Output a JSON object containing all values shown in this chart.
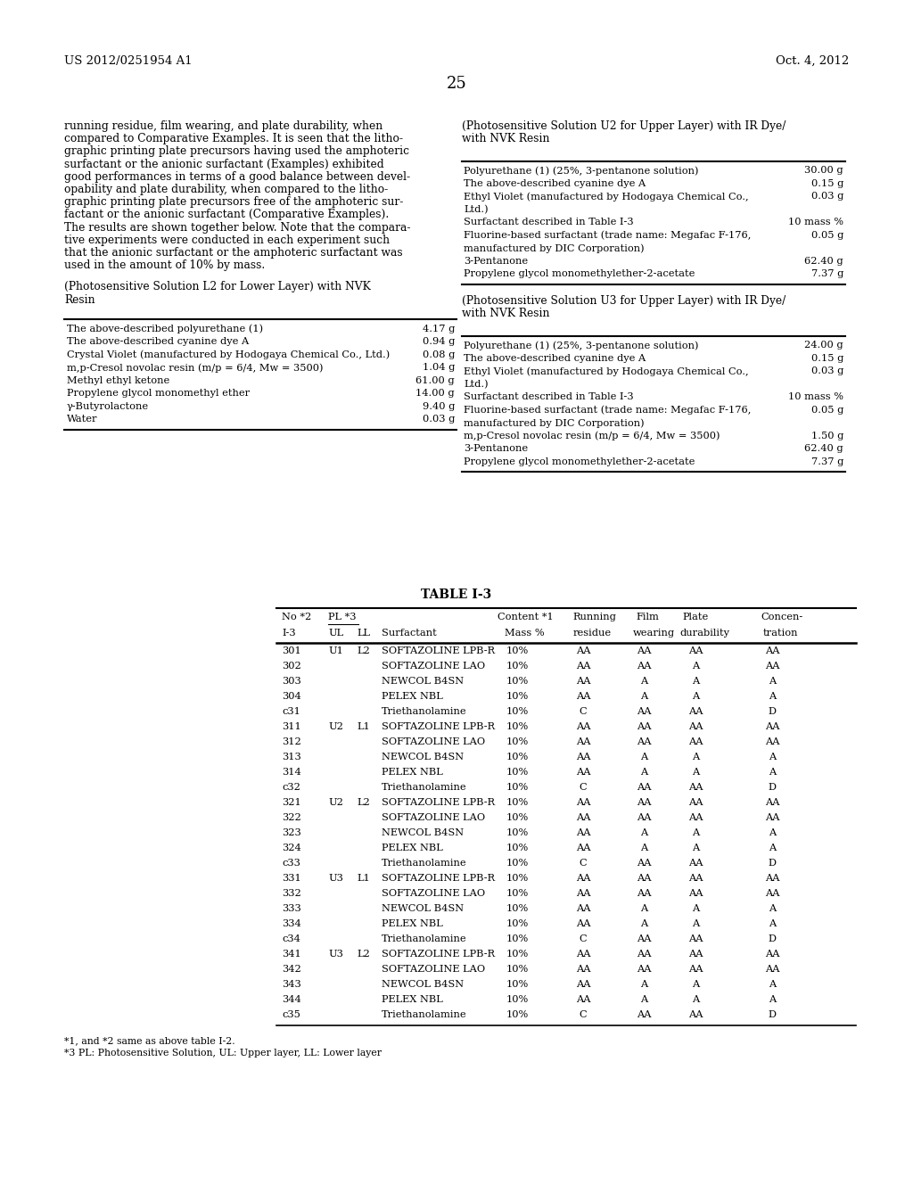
{
  "header_left": "US 2012/0251954 A1",
  "header_right": "Oct. 4, 2012",
  "page_number": "25",
  "left_body_text": [
    "running residue, film wearing, and plate durability, when",
    "compared to Comparative Examples. It is seen that the litho-",
    "graphic printing plate precursors having used the amphoteric",
    "surfactant or the anionic surfactant (Examples) exhibited",
    "good performances in terms of a good balance between devel-",
    "opability and plate durability, when compared to the litho-",
    "graphic printing plate precursors free of the amphoteric sur-",
    "factant or the anionic surfactant (Comparative Examples).",
    "The results are shown together below. Note that the compara-",
    "tive experiments were conducted in each experiment such",
    "that the anionic surfactant or the amphoteric surfactant was",
    "used in the amount of 10% by mass."
  ],
  "left_section_title_line1": "(Photosensitive Solution L2 for Lower Layer) with NVK",
  "left_section_title_line2": "Resin",
  "left_table_rows": [
    [
      "The above-described polyurethane (1)",
      "4.17 g"
    ],
    [
      "The above-described cyanine dye A",
      "0.94 g"
    ],
    [
      "Crystal Violet (manufactured by Hodogaya Chemical Co., Ltd.)",
      "0.08 g"
    ],
    [
      "m,p-Cresol novolac resin (m/p = 6/4, Mw = 3500)",
      "1.04 g"
    ],
    [
      "Methyl ethyl ketone",
      "61.00 g"
    ],
    [
      "Propylene glycol monomethyl ether",
      "14.00 g"
    ],
    [
      "γ-Butyrolactone",
      "9.40 g"
    ],
    [
      "Water",
      "0.03 g"
    ]
  ],
  "right_u2_title_line1": "(Photosensitive Solution U2 for Upper Layer) with IR Dye/",
  "right_u2_title_line2": "with NVK Resin",
  "right_u2_rows": [
    [
      "Polyurethane (1) (25%, 3-pentanone solution)",
      "30.00 g"
    ],
    [
      "The above-described cyanine dye A",
      "0.15 g"
    ],
    [
      "Ethyl Violet (manufactured by Hodogaya Chemical Co.,",
      "0.03 g"
    ],
    [
      "Ltd.)",
      ""
    ],
    [
      "Surfactant described in Table I-3",
      "10 mass %"
    ],
    [
      "Fluorine-based surfactant (trade name: Megafac F-176,",
      "0.05 g"
    ],
    [
      "manufactured by DIC Corporation)",
      ""
    ],
    [
      "3-Pentanone",
      "62.40 g"
    ],
    [
      "Propylene glycol monomethylether-2-acetate",
      "7.37 g"
    ]
  ],
  "right_u3_title_line1": "(Photosensitive Solution U3 for Upper Layer) with IR Dye/",
  "right_u3_title_line2": "with NVK Resin",
  "right_u3_rows": [
    [
      "Polyurethane (1) (25%, 3-pentanone solution)",
      "24.00 g"
    ],
    [
      "The above-described cyanine dye A",
      "0.15 g"
    ],
    [
      "Ethyl Violet (manufactured by Hodogaya Chemical Co.,",
      "0.03 g"
    ],
    [
      "Ltd.)",
      ""
    ],
    [
      "Surfactant described in Table I-3",
      "10 mass %"
    ],
    [
      "Fluorine-based surfactant (trade name: Megafac F-176,",
      "0.05 g"
    ],
    [
      "manufactured by DIC Corporation)",
      ""
    ],
    [
      "m,p-Cresol novolac resin (m/p = 6/4, Mw = 3500)",
      "1.50 g"
    ],
    [
      "3-Pentanone",
      "62.40 g"
    ],
    [
      "Propylene glycol monomethylether-2-acetate",
      "7.37 g"
    ]
  ],
  "table_i3_title": "TABLE I-3",
  "table_i3_rows": [
    [
      "301",
      "U1",
      "L2",
      "SOFTAZOLINE LPB-R",
      "10%",
      "AA",
      "AA",
      "AA",
      "AA"
    ],
    [
      "302",
      "",
      "",
      "SOFTAZOLINE LAO",
      "10%",
      "AA",
      "AA",
      "A",
      "AA"
    ],
    [
      "303",
      "",
      "",
      "NEWCOL B4SN",
      "10%",
      "AA",
      "A",
      "A",
      "A"
    ],
    [
      "304",
      "",
      "",
      "PELEX NBL",
      "10%",
      "AA",
      "A",
      "A",
      "A"
    ],
    [
      "c31",
      "",
      "",
      "Triethanolamine",
      "10%",
      "C",
      "AA",
      "AA",
      "D"
    ],
    [
      "311",
      "U2",
      "L1",
      "SOFTAZOLINE LPB-R",
      "10%",
      "AA",
      "AA",
      "AA",
      "AA"
    ],
    [
      "312",
      "",
      "",
      "SOFTAZOLINE LAO",
      "10%",
      "AA",
      "AA",
      "AA",
      "AA"
    ],
    [
      "313",
      "",
      "",
      "NEWCOL B4SN",
      "10%",
      "AA",
      "A",
      "A",
      "A"
    ],
    [
      "314",
      "",
      "",
      "PELEX NBL",
      "10%",
      "AA",
      "A",
      "A",
      "A"
    ],
    [
      "c32",
      "",
      "",
      "Triethanolamine",
      "10%",
      "C",
      "AA",
      "AA",
      "D"
    ],
    [
      "321",
      "U2",
      "L2",
      "SOFTAZOLINE LPB-R",
      "10%",
      "AA",
      "AA",
      "AA",
      "AA"
    ],
    [
      "322",
      "",
      "",
      "SOFTAZOLINE LAO",
      "10%",
      "AA",
      "AA",
      "AA",
      "AA"
    ],
    [
      "323",
      "",
      "",
      "NEWCOL B4SN",
      "10%",
      "AA",
      "A",
      "A",
      "A"
    ],
    [
      "324",
      "",
      "",
      "PELEX NBL",
      "10%",
      "AA",
      "A",
      "A",
      "A"
    ],
    [
      "c33",
      "",
      "",
      "Triethanolamine",
      "10%",
      "C",
      "AA",
      "AA",
      "D"
    ],
    [
      "331",
      "U3",
      "L1",
      "SOFTAZOLINE LPB-R",
      "10%",
      "AA",
      "AA",
      "AA",
      "AA"
    ],
    [
      "332",
      "",
      "",
      "SOFTAZOLINE LAO",
      "10%",
      "AA",
      "AA",
      "AA",
      "AA"
    ],
    [
      "333",
      "",
      "",
      "NEWCOL B4SN",
      "10%",
      "AA",
      "A",
      "A",
      "A"
    ],
    [
      "334",
      "",
      "",
      "PELEX NBL",
      "10%",
      "AA",
      "A",
      "A",
      "A"
    ],
    [
      "c34",
      "",
      "",
      "Triethanolamine",
      "10%",
      "C",
      "AA",
      "AA",
      "D"
    ],
    [
      "341",
      "U3",
      "L2",
      "SOFTAZOLINE LPB-R",
      "10%",
      "AA",
      "AA",
      "AA",
      "AA"
    ],
    [
      "342",
      "",
      "",
      "SOFTAZOLINE LAO",
      "10%",
      "AA",
      "AA",
      "AA",
      "AA"
    ],
    [
      "343",
      "",
      "",
      "NEWCOL B4SN",
      "10%",
      "AA",
      "A",
      "A",
      "A"
    ],
    [
      "344",
      "",
      "",
      "PELEX NBL",
      "10%",
      "AA",
      "A",
      "A",
      "A"
    ],
    [
      "c35",
      "",
      "",
      "Triethanolamine",
      "10%",
      "C",
      "AA",
      "AA",
      "D"
    ]
  ],
  "footnote1": "*1, and *2 same as above table I-2.",
  "footnote2": "*3 PL: Photosensitive Solution, UL: Upper layer, LL: Lower layer"
}
